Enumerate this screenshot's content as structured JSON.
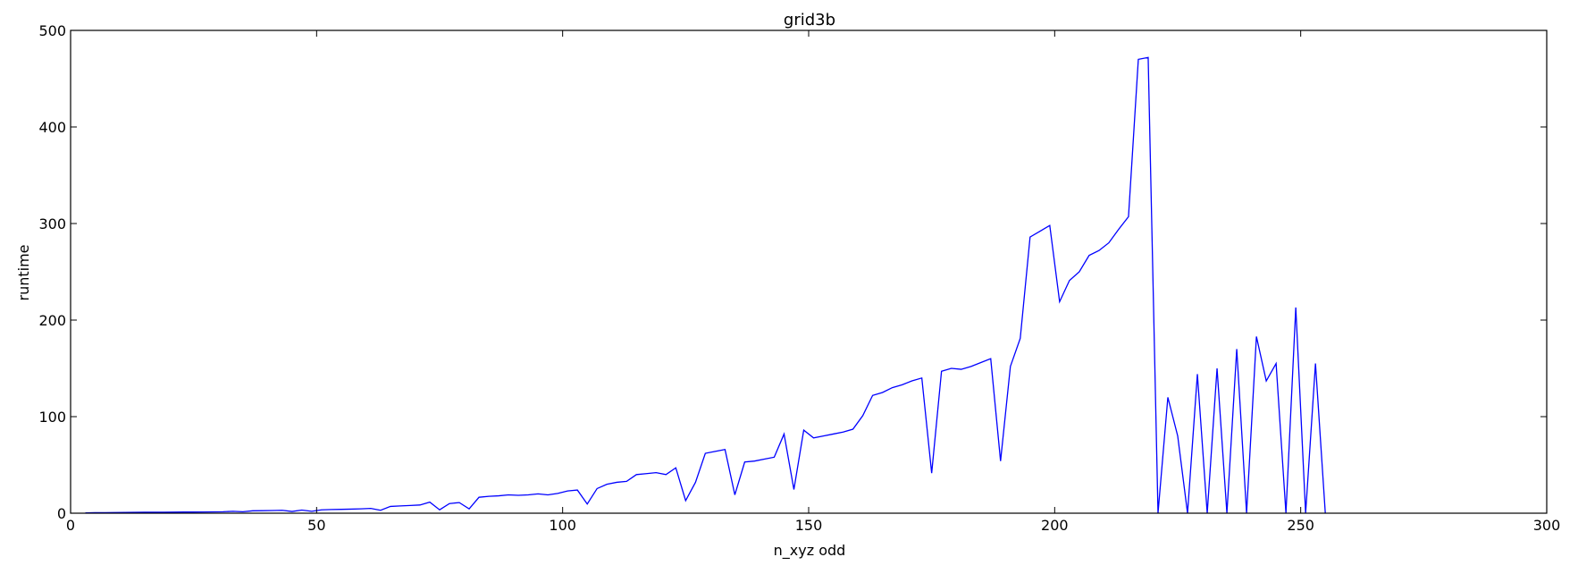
{
  "chart_data": {
    "type": "line",
    "title": "grid3b",
    "xlabel": "n_xyz odd",
    "ylabel": "runtime",
    "xlim": [
      0,
      300
    ],
    "ylim": [
      0,
      500
    ],
    "xticks": [
      0,
      50,
      100,
      150,
      200,
      250,
      300
    ],
    "yticks": [
      0,
      100,
      200,
      300,
      400,
      500
    ],
    "grid": false,
    "line_color": "#0000ff",
    "series": [
      {
        "x": [
          3,
          5,
          7,
          9,
          11,
          13,
          15,
          17,
          19,
          21,
          23,
          25,
          27,
          29,
          31,
          33,
          35,
          37,
          39,
          41,
          43,
          45,
          47,
          49,
          51,
          53,
          55,
          57,
          59,
          61,
          63,
          65,
          67,
          69,
          71,
          73,
          75,
          77,
          79,
          81,
          83,
          85,
          87,
          89,
          91,
          93,
          95,
          97,
          99,
          101,
          103,
          105,
          107,
          109,
          111,
          113,
          115,
          117,
          119,
          121,
          123,
          125,
          127,
          129,
          131,
          133,
          135,
          137,
          139,
          141,
          143,
          145,
          147,
          149,
          151,
          153,
          155,
          157,
          159,
          161,
          163,
          165,
          167,
          169,
          171,
          173,
          175,
          177,
          179,
          181,
          183,
          185,
          187,
          189,
          191,
          193,
          195,
          197,
          199,
          201,
          203,
          205,
          207,
          209,
          211,
          213,
          215,
          217,
          219,
          221,
          223,
          225,
          227,
          229,
          231,
          233,
          235,
          237,
          239,
          241,
          243,
          245,
          247,
          249,
          251,
          253,
          255
        ],
        "y": [
          0.3,
          0.5,
          0.6,
          0.7,
          0.8,
          0.9,
          1,
          1,
          1,
          1.1,
          1.2,
          1.2,
          1.3,
          1.4,
          1.5,
          2,
          1.5,
          2.5,
          2.6,
          2.8,
          3,
          1.8,
          3.2,
          2,
          3.5,
          3.8,
          4,
          4.2,
          4.5,
          5,
          3,
          7,
          7.5,
          8,
          8.5,
          11.5,
          3.5,
          10,
          11,
          4.5,
          16.5,
          17.5,
          18,
          19,
          18.5,
          19,
          20,
          19,
          20.5,
          23,
          24,
          9.5,
          25.5,
          30,
          32,
          33,
          40,
          41,
          42,
          40,
          47,
          13,
          32,
          62,
          64,
          66,
          19,
          53,
          54,
          56,
          58,
          82,
          24.5,
          86,
          78,
          80,
          82,
          84,
          87,
          101,
          122,
          125,
          130,
          133,
          137,
          140,
          41.5,
          147,
          150,
          149,
          152,
          156,
          160,
          54,
          152,
          181,
          286,
          292,
          298,
          219,
          241,
          250,
          267,
          272,
          280,
          294,
          307,
          470,
          472,
          0,
          120,
          80,
          0,
          144,
          0,
          150,
          0,
          170,
          0,
          183,
          137,
          155,
          0,
          213,
          0,
          155,
          0
        ]
      }
    ]
  }
}
